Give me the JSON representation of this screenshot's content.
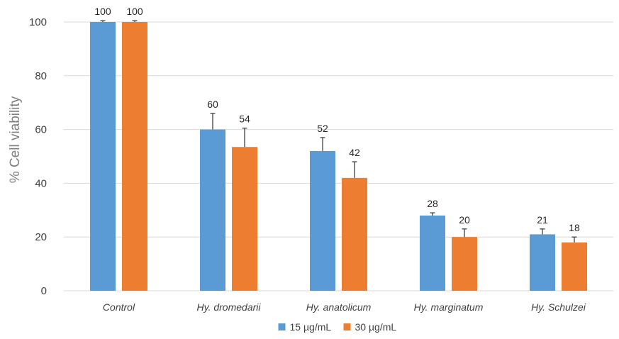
{
  "chart_data": {
    "type": "bar",
    "title": "",
    "xlabel": "",
    "ylabel": "% Cell viability",
    "ylim": [
      0,
      100
    ],
    "yticks": [
      0,
      20,
      40,
      60,
      80,
      100
    ],
    "grid": true,
    "legend_position": "bottom",
    "categories": [
      "Control",
      "Hy. dromedarii",
      "Hy. anatolicum",
      "Hy. marginatum",
      "Hy. Schulzei"
    ],
    "series": [
      {
        "name": "15 µg/mL",
        "color": "#5b9bd5",
        "values": [
          100,
          60,
          52,
          28,
          21
        ],
        "labels": [
          "100",
          "60",
          "52",
          "28",
          "21"
        ],
        "errors": [
          0.5,
          6,
          5,
          1,
          2
        ]
      },
      {
        "name": "30 µg/mL",
        "color": "#ed7d31",
        "values": [
          100,
          53.5,
          42,
          20,
          18
        ],
        "labels": [
          "100",
          "54",
          "42",
          "20",
          "18"
        ],
        "errors": [
          0.5,
          7,
          6,
          3,
          2
        ]
      }
    ]
  }
}
